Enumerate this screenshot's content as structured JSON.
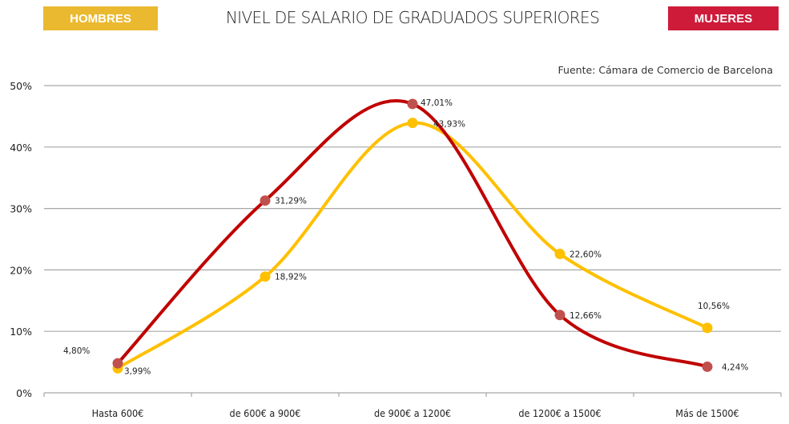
{
  "header": {
    "legend_left": "HOMBRES",
    "legend_right": "MUJERES",
    "title": "NIVEL DE SALARIO DE GRADUADOS SUPERIORES",
    "source": "Fuente: Cámara de Comercio de Barcelona"
  },
  "colors": {
    "hombres": "#FFC000",
    "hombres_legend": "#EBB92F",
    "mujeres": "#C00000",
    "mujeres_marker": "#C0504D",
    "mujeres_legend": "#CE1B3A",
    "grid": "#A6A6A6"
  },
  "chart_data": {
    "type": "line",
    "title": "NIVEL DE SALARIO DE GRADUADOS SUPERIORES",
    "subtitle": "Fuente: Cámara de Comercio de Barcelona",
    "xlabel": "",
    "ylabel": "",
    "categories": [
      "Hasta 600€",
      "de 600€ a 900€",
      "de 900€ a 1200€",
      "de 1200€ a 1500€",
      "Más de 1500€"
    ],
    "series": [
      {
        "name": "HOMBRES",
        "color": "#FFC000",
        "values": [
          3.99,
          18.92,
          43.93,
          22.6,
          10.56
        ],
        "labels": [
          "3,99%",
          "18,92%",
          "43,93%",
          "22,60%",
          "10,56%"
        ]
      },
      {
        "name": "MUJERES",
        "color": "#C00000",
        "values": [
          4.8,
          31.29,
          47.01,
          12.66,
          4.24
        ],
        "labels": [
          "4,80%",
          "31,29%",
          "47,01%",
          "12,66%",
          "4,24%"
        ]
      }
    ],
    "ylim": [
      0,
      50
    ],
    "yticks": [
      "0%",
      "10%",
      "20%",
      "30%",
      "40%",
      "50%"
    ],
    "grid": true,
    "smooth": true,
    "legend_position": "top (left: HOMBRES, right: MUJERES)"
  }
}
